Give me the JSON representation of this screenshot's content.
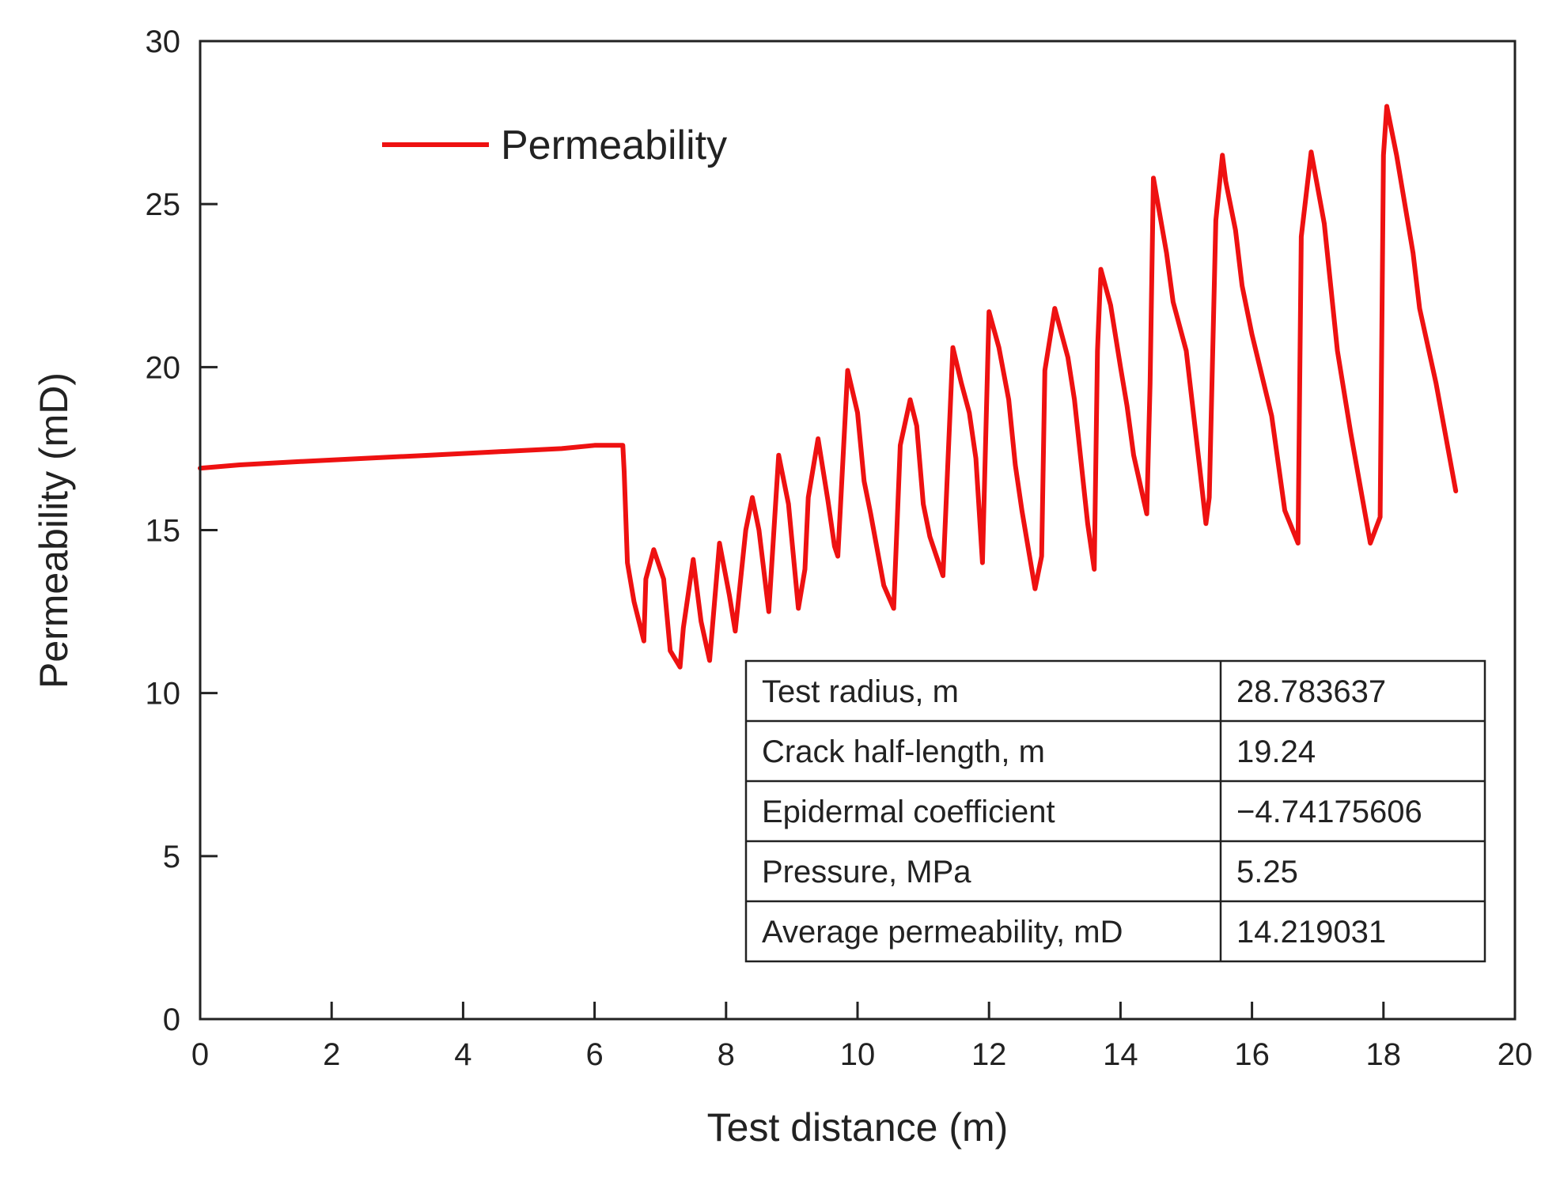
{
  "chart_data": {
    "type": "line",
    "title": "",
    "xlabel": "Test distance (m)",
    "ylabel": "Permeability (mD)",
    "xlim": [
      0,
      20
    ],
    "ylim": [
      0,
      30
    ],
    "xticks": [
      0,
      2,
      4,
      6,
      8,
      10,
      12,
      14,
      16,
      18,
      20
    ],
    "yticks": [
      0,
      5,
      10,
      15,
      20,
      25,
      30
    ],
    "grid": false,
    "legend_position": "top-left",
    "colors": {
      "series": "#ee1111",
      "axis": "#222222",
      "text": "#222222"
    },
    "series": [
      {
        "name": "Permeability",
        "x": [
          0,
          0.6,
          1.5,
          2.5,
          3.5,
          4.5,
          5.5,
          6.0,
          6.2,
          6.43,
          6.45,
          6.5,
          6.6,
          6.75,
          6.78,
          6.9,
          7.05,
          7.15,
          7.3,
          7.35,
          7.5,
          7.62,
          7.75,
          7.9,
          8.05,
          8.14,
          8.3,
          8.4,
          8.5,
          8.65,
          8.8,
          8.95,
          9.1,
          9.2,
          9.25,
          9.4,
          9.55,
          9.65,
          9.7,
          9.85,
          10.0,
          10.1,
          10.2,
          10.4,
          10.55,
          10.65,
          10.8,
          10.9,
          11.0,
          11.1,
          11.3,
          11.45,
          11.58,
          11.7,
          11.8,
          11.9,
          12.0,
          12.15,
          12.3,
          12.4,
          12.5,
          12.7,
          12.8,
          12.85,
          13.0,
          13.2,
          13.3,
          13.5,
          13.6,
          13.65,
          13.7,
          13.85,
          14.0,
          14.1,
          14.2,
          14.4,
          14.45,
          14.5,
          14.7,
          14.8,
          15.0,
          15.2,
          15.3,
          15.35,
          15.45,
          15.55,
          15.6,
          15.75,
          15.85,
          16.0,
          16.3,
          16.5,
          16.7,
          16.75,
          16.9,
          17.1,
          17.3,
          17.5,
          17.8,
          17.95,
          18.0,
          18.05,
          18.2,
          18.45,
          18.55,
          18.8,
          19.1
        ],
        "values": [
          16.9,
          17.0,
          17.1,
          17.2,
          17.3,
          17.4,
          17.5,
          17.6,
          17.6,
          17.6,
          16.8,
          14.0,
          12.8,
          11.6,
          13.5,
          14.4,
          13.5,
          11.3,
          10.8,
          12.0,
          14.1,
          12.2,
          11.0,
          14.6,
          13.0,
          11.9,
          15.0,
          16.0,
          15.0,
          12.5,
          17.3,
          15.8,
          12.6,
          13.8,
          16.0,
          17.8,
          15.9,
          14.5,
          14.2,
          19.9,
          18.6,
          16.5,
          15.5,
          13.3,
          12.6,
          17.6,
          19.0,
          18.2,
          15.8,
          14.8,
          13.6,
          20.6,
          19.5,
          18.6,
          17.2,
          14.0,
          21.7,
          20.6,
          19.0,
          17.0,
          15.6,
          13.2,
          14.2,
          19.9,
          21.8,
          20.3,
          19.0,
          15.2,
          13.8,
          20.5,
          23.0,
          21.9,
          20.0,
          18.8,
          17.3,
          15.5,
          19.5,
          25.8,
          23.5,
          22.0,
          20.5,
          17.0,
          15.2,
          16.0,
          24.5,
          26.5,
          25.7,
          24.2,
          22.5,
          21.0,
          18.5,
          15.6,
          14.6,
          24.0,
          26.6,
          24.4,
          20.5,
          18.0,
          14.6,
          15.4,
          26.5,
          28.0,
          26.5,
          23.5,
          21.8,
          19.5,
          16.2
        ]
      }
    ],
    "table": [
      {
        "label": "Test radius, m",
        "value": "28.783637"
      },
      {
        "label": "Crack half-length, m",
        "value": "19.24"
      },
      {
        "label": "Epidermal coefficient",
        "value": "−4.74175606"
      },
      {
        "label": "Pressure, MPa",
        "value": "5.25"
      },
      {
        "label": "Average permeability, mD",
        "value": "14.219031"
      }
    ]
  }
}
